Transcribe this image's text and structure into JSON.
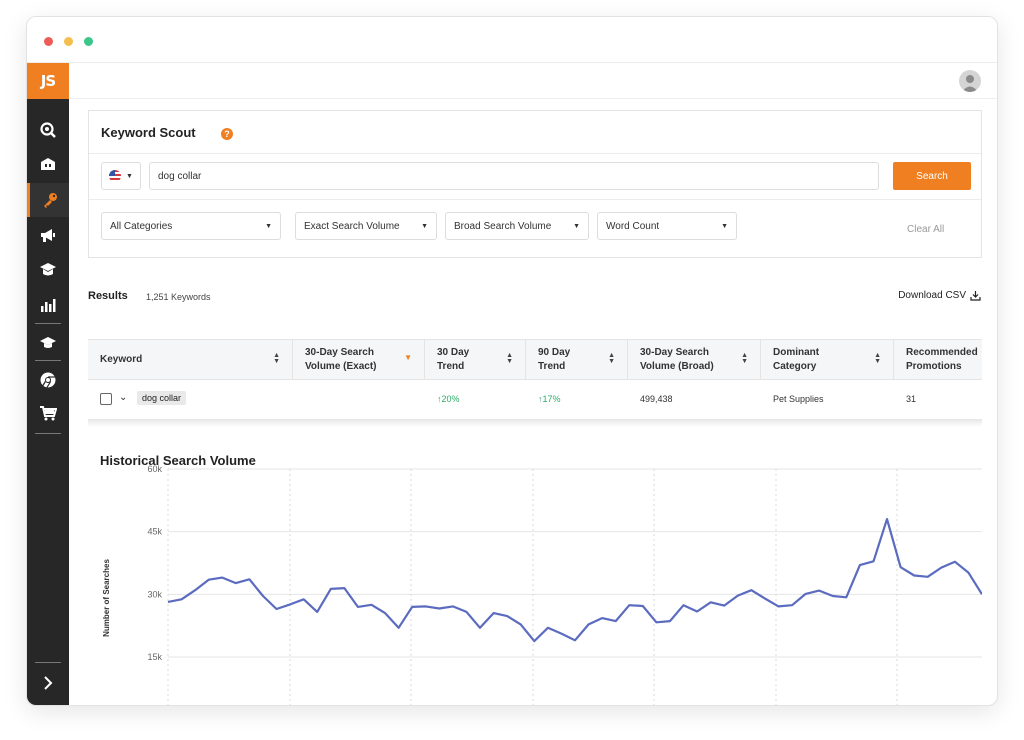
{
  "app": {
    "logo": "JS"
  },
  "sidebar": {
    "items": [
      {
        "icon": "search-icon"
      },
      {
        "icon": "store-icon"
      },
      {
        "icon": "key-icon",
        "active": true
      },
      {
        "icon": "megaphone-icon"
      },
      {
        "icon": "academy-icon"
      },
      {
        "icon": "bar-chart-icon"
      },
      {
        "icon": "graduation-cap-icon"
      },
      {
        "icon": "chrome-icon"
      },
      {
        "icon": "cart-icon"
      }
    ]
  },
  "panel": {
    "title": "Keyword Scout",
    "search_value": "dog collar",
    "search_button": "Search",
    "filters": [
      "All Categories",
      "Exact Search Volume",
      "Broad Search Volume",
      "Word Count"
    ],
    "clear_all": "Clear All"
  },
  "results": {
    "label": "Results",
    "count": "1,251 Keywords",
    "download": "Download CSV"
  },
  "table": {
    "headers": {
      "keyword": "Keyword",
      "exact": "30-Day Search Volume (Exact)",
      "trend30": "30 Day Trend",
      "trend90": "90 Day Trend",
      "broad": "30-Day Search Volume (Broad)",
      "category": "Dominant Category",
      "promotions": "Recommended Promotions"
    },
    "row": {
      "keyword": "dog collar",
      "exact": "",
      "trend30": "20%",
      "trend90": "17%",
      "broad": "499,438",
      "category": "Pet Supplies",
      "promotions": "31"
    }
  },
  "chart_data": {
    "type": "line",
    "title": "Historical Search Volume",
    "ylabel": "Number of Searches",
    "ylim": [
      0,
      60000
    ],
    "yticks": [
      "15k",
      "30k",
      "45k",
      "60k"
    ],
    "yticks_values": [
      15000,
      30000,
      45000,
      60000
    ],
    "grid": true,
    "color": "#5b6bbf",
    "series": [
      {
        "values": [
          28200,
          28800,
          31000,
          33500,
          34000,
          32700,
          33600,
          29600,
          26500,
          27600,
          28800,
          25800,
          31300,
          31500,
          27000,
          27500,
          25500,
          22000,
          27000,
          27100,
          26600,
          27100,
          25800,
          22000,
          25500,
          24800,
          22800,
          18800,
          22000,
          20600,
          19000,
          22800,
          24300,
          23600,
          27400,
          27200,
          23300,
          23600,
          27400,
          25900,
          28100,
          27300,
          29700,
          31000,
          29000,
          27100,
          27400,
          30100,
          30900,
          29600,
          29300,
          37000,
          37900,
          48000,
          36500,
          34500,
          34200,
          36400,
          37800,
          35200,
          30000
        ]
      }
    ]
  }
}
